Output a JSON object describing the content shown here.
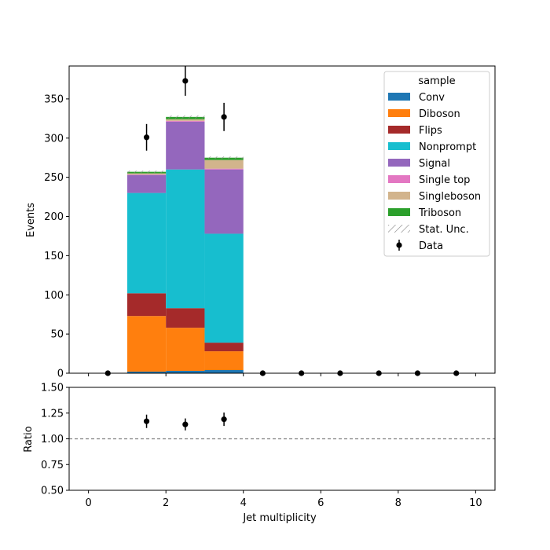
{
  "chart_data": {
    "type": "bar",
    "stacked": true,
    "xlabel": "Jet multiplicity",
    "ylabel_main": "Events",
    "ylabel_ratio": "Ratio",
    "xlim": [
      -0.5,
      10.5
    ],
    "ylim_main": [
      0,
      392
    ],
    "ylim_ratio": [
      0.5,
      1.5
    ],
    "xticks": [
      0,
      2,
      4,
      6,
      8,
      10
    ],
    "yticks_main": [
      0,
      50,
      100,
      150,
      200,
      250,
      300,
      350
    ],
    "yticks_ratio": [
      "0.50",
      "0.75",
      "1.00",
      "1.25",
      "1.50"
    ],
    "ratio_reference_line": 1.0,
    "bin_edges": [
      1,
      2,
      3,
      4
    ],
    "legend": {
      "title": "sample",
      "placement": "top-right"
    },
    "series": [
      {
        "name": "Conv",
        "color": "#1f77b4",
        "values": [
          2,
          3,
          4
        ]
      },
      {
        "name": "Diboson",
        "color": "#ff7f0e",
        "values": [
          71,
          55,
          24
        ]
      },
      {
        "name": "Flips",
        "color": "#a52a2a",
        "values": [
          29,
          25,
          11
        ]
      },
      {
        "name": "Nonprompt",
        "color": "#17becf",
        "values": [
          128,
          177,
          139
        ]
      },
      {
        "name": "Signal",
        "color": "#9467bd",
        "values": [
          23,
          61,
          82
        ]
      },
      {
        "name": "Single top",
        "color": "#e377c2",
        "values": [
          0.5,
          1,
          1
        ]
      },
      {
        "name": "Singleboson",
        "color": "#d2b48c",
        "values": [
          1.5,
          2,
          11
        ]
      },
      {
        "name": "Triboson",
        "color": "#2ca02c",
        "values": [
          2,
          3,
          3
        ]
      }
    ],
    "stat_unc_label": "Stat. Unc.",
    "stat_unc": [
      1.5,
      2,
      1.5
    ],
    "data": {
      "name": "Data",
      "x": [
        0.5,
        1.5,
        2.5,
        3.5,
        4.5,
        5.5,
        6.5,
        7.5,
        8.5,
        9.5
      ],
      "y": [
        0,
        301,
        373,
        327,
        0,
        0,
        0,
        0,
        0,
        0
      ],
      "yerr": [
        0,
        17,
        19,
        18,
        0,
        0,
        0,
        0,
        0,
        0
      ]
    },
    "ratio": {
      "x": [
        1.5,
        2.5,
        3.5
      ],
      "y": [
        1.17,
        1.14,
        1.19
      ],
      "yerr": [
        0.065,
        0.058,
        0.065
      ]
    }
  }
}
